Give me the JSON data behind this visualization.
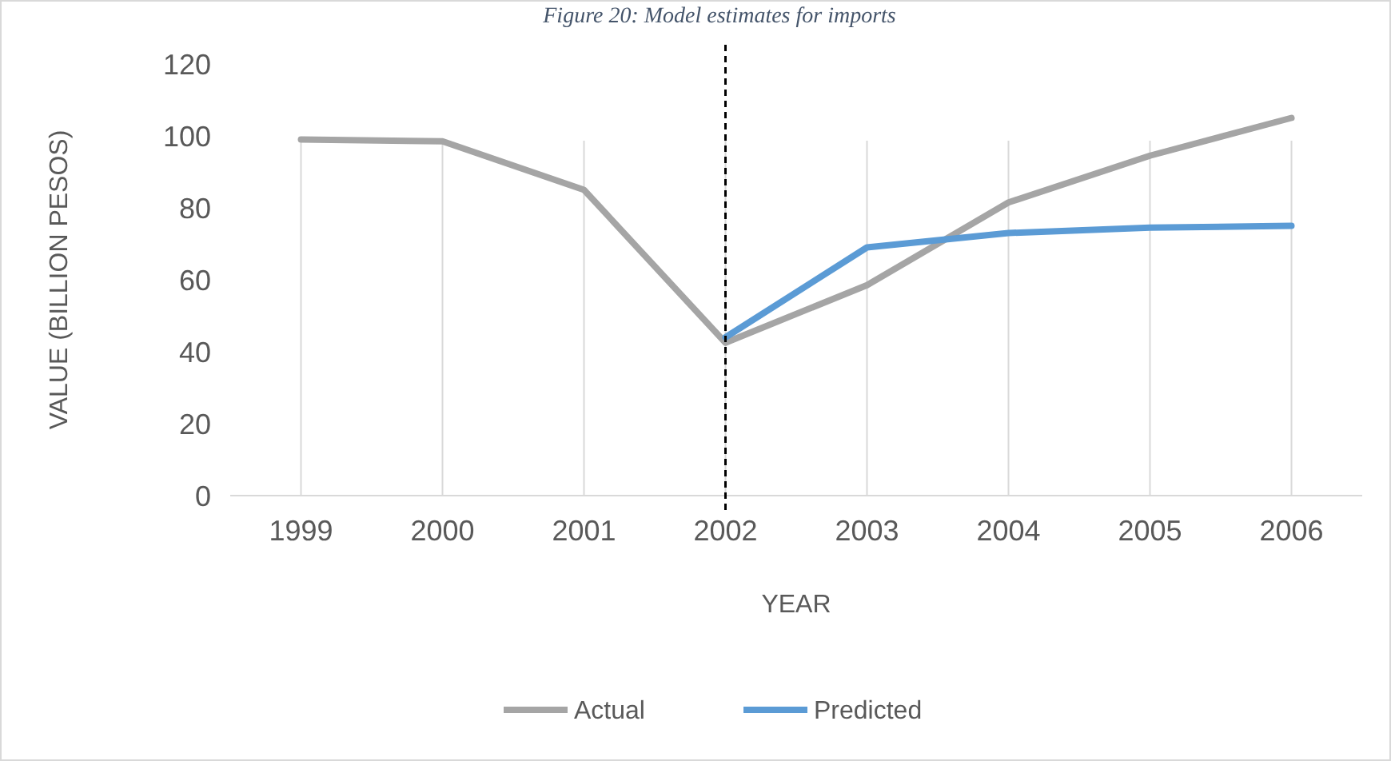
{
  "chart_data": {
    "type": "line",
    "title": "Figure 20: Model estimates for imports",
    "xlabel": "YEAR",
    "ylabel": "VALUE (BILLION PESOS)",
    "categories": [
      "1999",
      "2000",
      "2001",
      "2002",
      "2003",
      "2004",
      "2005",
      "2006"
    ],
    "series": [
      {
        "name": "Actual",
        "color": "#a5a5a5",
        "values": [
          99,
          98.5,
          85,
          42.5,
          58.5,
          81.5,
          94.5,
          105
        ]
      },
      {
        "name": "Predicted",
        "color": "#5b9bd5",
        "values": [
          null,
          null,
          null,
          44,
          69,
          73,
          74.5,
          75
        ]
      }
    ],
    "ylim": [
      0,
      120
    ],
    "yticks": [
      0,
      20,
      40,
      60,
      80,
      100,
      120
    ],
    "grid": "x",
    "legend": "bottom",
    "line_style": "solid",
    "ref_lines": [
      {
        "axis": "x",
        "value": "2002",
        "color": "#000000",
        "line_style": "dashed"
      }
    ]
  }
}
